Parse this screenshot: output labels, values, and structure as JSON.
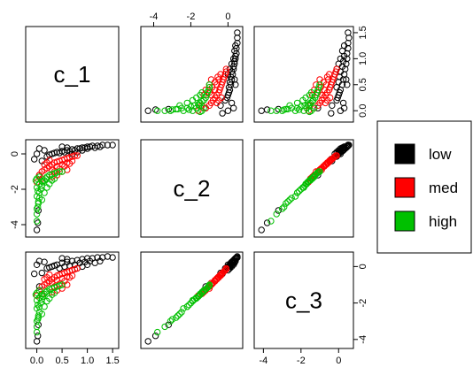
{
  "chart_data": {
    "type": "scatter",
    "subtype": "pairs-matrix",
    "variables": [
      "c_1",
      "c_2",
      "c_3"
    ],
    "legend": {
      "position": "right",
      "entries": [
        {
          "label": "low",
          "color": "#000000"
        },
        {
          "label": "med",
          "color": "#ff0000"
        },
        {
          "label": "high",
          "color": "#00c000"
        }
      ]
    },
    "axes": {
      "c_1": {
        "range": [
          -0.15,
          1.55
        ],
        "ticks": [
          0.0,
          0.5,
          1.0,
          1.5
        ],
        "tick_labels": [
          "0.0",
          "0.5",
          "1.0",
          "1.5"
        ]
      },
      "c_2": {
        "range": [
          -4.5,
          0.6
        ],
        "ticks": [
          -4,
          -2,
          0
        ],
        "tick_labels": [
          "-4",
          "-2",
          "0"
        ]
      },
      "c_3": {
        "range": [
          -4.3,
          0.6
        ],
        "ticks": [
          -4,
          -2,
          0
        ],
        "tick_labels": [
          "-4",
          "-2",
          "0"
        ]
      }
    },
    "series": [
      {
        "name": "low",
        "color": "#000000",
        "points": [
          [
            0.0,
            -4.3,
            -4.1
          ],
          [
            0.02,
            -3.9,
            -3.8
          ],
          [
            0.03,
            -3.2,
            -3.2
          ],
          [
            0.05,
            -1.2,
            -1.1
          ],
          [
            0.1,
            -0.4,
            -0.35
          ],
          [
            0.2,
            -0.15,
            -0.1
          ],
          [
            0.3,
            0.0,
            0.0
          ],
          [
            0.4,
            0.1,
            0.1
          ],
          [
            0.5,
            0.15,
            0.2
          ],
          [
            0.6,
            0.2,
            0.25
          ],
          [
            0.7,
            0.25,
            0.3
          ],
          [
            0.8,
            0.3,
            0.35
          ],
          [
            0.9,
            0.35,
            0.4
          ],
          [
            1.0,
            0.4,
            0.45
          ],
          [
            1.1,
            0.45,
            0.45
          ],
          [
            1.2,
            0.45,
            0.5
          ],
          [
            1.3,
            0.5,
            0.5
          ],
          [
            1.4,
            0.5,
            0.55
          ],
          [
            1.5,
            0.5,
            0.5
          ],
          [
            0.45,
            0.05,
            -0.1
          ],
          [
            0.55,
            0.1,
            0.0
          ],
          [
            0.65,
            0.15,
            0.05
          ],
          [
            0.75,
            0.2,
            0.1
          ],
          [
            0.85,
            0.3,
            0.2
          ],
          [
            0.95,
            0.35,
            0.25
          ],
          [
            1.05,
            0.4,
            0.3
          ],
          [
            0.35,
            0.05,
            0.05
          ],
          [
            0.25,
            -0.05,
            -0.05
          ],
          [
            -0.05,
            -0.3,
            -0.4
          ],
          [
            0.0,
            0.0,
            0.1
          ],
          [
            0.15,
            0.2,
            0.25
          ],
          [
            0.05,
            0.3,
            0.3
          ],
          [
            0.7,
            0.0,
            -0.2
          ],
          [
            0.8,
            0.1,
            -0.1
          ],
          [
            0.9,
            0.2,
            0.0
          ],
          [
            1.0,
            0.3,
            0.1
          ],
          [
            1.15,
            0.35,
            0.2
          ],
          [
            1.25,
            0.4,
            0.3
          ],
          [
            0.6,
            0.35,
            0.4
          ],
          [
            0.5,
            0.4,
            0.45
          ]
        ]
      },
      {
        "name": "med",
        "color": "#ff0000",
        "points": [
          [
            0.0,
            -1.6,
            -1.6
          ],
          [
            0.05,
            -1.2,
            -1.3
          ],
          [
            0.1,
            -1.0,
            -1.1
          ],
          [
            0.15,
            -0.9,
            -1.0
          ],
          [
            0.2,
            -0.8,
            -0.9
          ],
          [
            0.25,
            -0.7,
            -0.8
          ],
          [
            0.3,
            -0.6,
            -0.7
          ],
          [
            0.35,
            -0.5,
            -0.6
          ],
          [
            0.4,
            -0.45,
            -0.5
          ],
          [
            0.45,
            -0.4,
            -0.45
          ],
          [
            0.5,
            -0.35,
            -0.4
          ],
          [
            0.55,
            -0.3,
            -0.35
          ],
          [
            0.6,
            -0.25,
            -0.3
          ],
          [
            0.65,
            -0.2,
            -0.25
          ],
          [
            0.7,
            -0.15,
            -0.2
          ],
          [
            0.75,
            -0.1,
            -0.15
          ],
          [
            0.8,
            -0.1,
            -0.1
          ],
          [
            0.3,
            -0.9,
            -0.9
          ],
          [
            0.4,
            -0.7,
            -0.75
          ],
          [
            0.5,
            -0.6,
            -0.65
          ],
          [
            0.6,
            -0.5,
            -0.55
          ],
          [
            0.35,
            -1.0,
            -1.1
          ],
          [
            0.45,
            -0.85,
            -0.95
          ],
          [
            0.55,
            -0.7,
            -0.8
          ],
          [
            0.65,
            -0.55,
            -0.6
          ],
          [
            0.2,
            -0.5,
            -0.6
          ],
          [
            0.25,
            -0.35,
            -0.45
          ],
          [
            0.15,
            -0.6,
            -0.7
          ],
          [
            0.5,
            -1.0,
            -1.2
          ],
          [
            0.7,
            -0.4,
            -0.5
          ],
          [
            0.4,
            -1.2,
            -1.3
          ],
          [
            0.6,
            -0.9,
            -1.0
          ],
          [
            0.1,
            -1.4,
            -1.5
          ],
          [
            0.3,
            -1.3,
            -1.4
          ]
        ]
      },
      {
        "name": "high",
        "color": "#00c000",
        "points": [
          [
            0.0,
            -3.8,
            -3.6
          ],
          [
            0.0,
            -3.4,
            -3.3
          ],
          [
            0.02,
            -3.0,
            -2.9
          ],
          [
            0.03,
            -2.7,
            -2.7
          ],
          [
            0.05,
            -2.5,
            -2.5
          ],
          [
            0.05,
            -2.2,
            -2.2
          ],
          [
            0.08,
            -2.0,
            -2.0
          ],
          [
            0.1,
            -1.8,
            -1.8
          ],
          [
            0.12,
            -1.6,
            -1.65
          ],
          [
            0.15,
            -1.5,
            -1.5
          ],
          [
            0.18,
            -1.4,
            -1.4
          ],
          [
            0.2,
            -1.3,
            -1.35
          ],
          [
            0.25,
            -1.2,
            -1.25
          ],
          [
            0.3,
            -1.15,
            -1.2
          ],
          [
            0.35,
            -1.1,
            -1.15
          ],
          [
            0.4,
            -1.05,
            -1.1
          ],
          [
            0.45,
            -1.0,
            -1.05
          ],
          [
            0.5,
            -1.0,
            -1.0
          ],
          [
            0.0,
            -2.4,
            -2.3
          ],
          [
            0.02,
            -2.1,
            -2.1
          ],
          [
            0.0,
            -1.9,
            -1.85
          ],
          [
            0.05,
            -1.7,
            -1.7
          ],
          [
            0.1,
            -1.55,
            -1.6
          ],
          [
            0.0,
            -1.4,
            -1.45
          ],
          [
            0.05,
            -1.3,
            -1.3
          ],
          [
            -0.02,
            -1.5,
            -1.55
          ],
          [
            0.2,
            -1.9,
            -1.9
          ],
          [
            0.25,
            -1.7,
            -1.75
          ],
          [
            0.3,
            -1.5,
            -1.55
          ],
          [
            0.35,
            -1.4,
            -1.45
          ],
          [
            0.15,
            -2.2,
            -2.2
          ],
          [
            0.1,
            -2.6,
            -2.6
          ],
          [
            0.0,
            -3.1,
            -3.0
          ],
          [
            0.03,
            -2.8,
            -2.8
          ]
        ]
      }
    ]
  }
}
